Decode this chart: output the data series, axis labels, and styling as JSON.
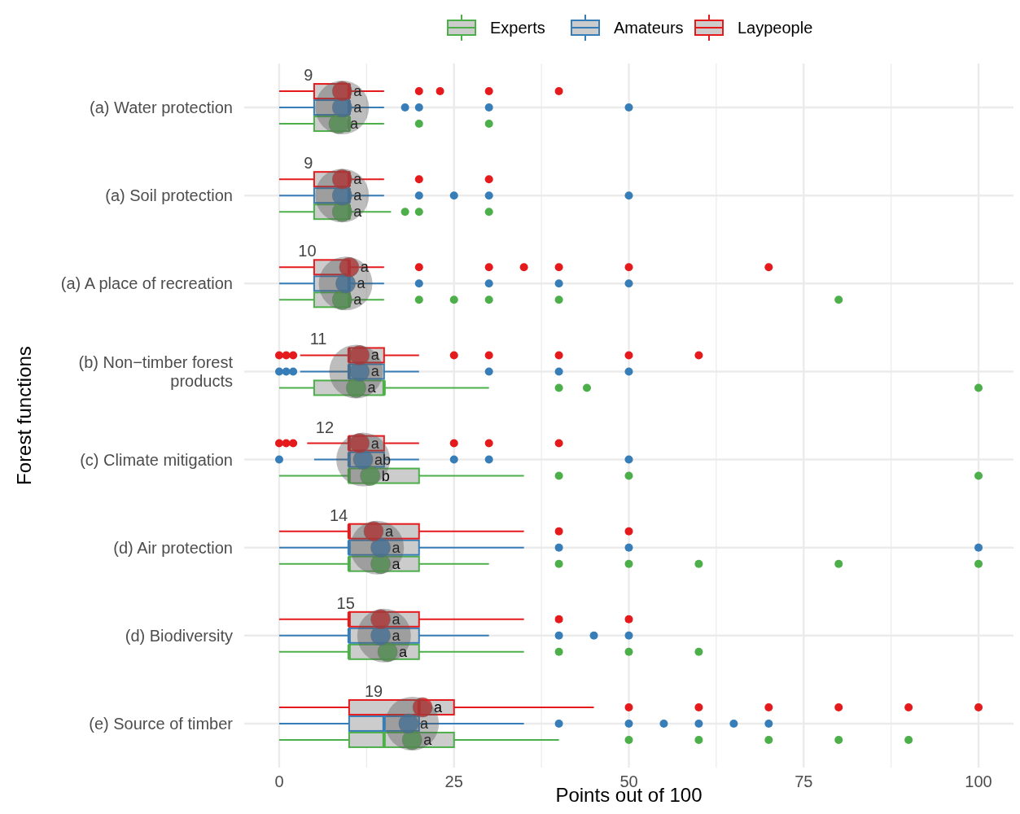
{
  "chart_data": {
    "type": "box",
    "orientation": "horizontal",
    "xlabel": "Points out of 100",
    "ylabel": "Forest functions",
    "categories": [
      "(a) Water protection",
      "(a) Soil protection",
      "(a) A place of recreation",
      "(b) Non−timber forest products",
      "(c) Climate mitigation",
      "(d) Air protection",
      "(d) Biodiversity",
      "(e) Source of timber"
    ],
    "xlim": [
      -5,
      105
    ],
    "xticks": [
      0,
      25,
      50,
      75,
      100
    ],
    "grid": true,
    "legend": "top",
    "series": [
      {
        "name": "Experts",
        "color": "#4daf4a",
        "boxes": [
          {
            "low": 0,
            "q1": 5,
            "median": 10,
            "q3": 10,
            "high": 15,
            "outliers": [
              20,
              30
            ]
          },
          {
            "low": 0,
            "q1": 5,
            "median": 10,
            "q3": 10,
            "high": 16,
            "outliers": [
              18,
              20,
              30
            ]
          },
          {
            "low": 0,
            "q1": 5,
            "median": 10,
            "q3": 10,
            "high": 15,
            "outliers": [
              20,
              25,
              30,
              40,
              80
            ]
          },
          {
            "low": 0,
            "q1": 5,
            "median": 15,
            "q3": 15,
            "high": 30,
            "outliers": [
              40,
              44,
              100
            ]
          },
          {
            "low": 0,
            "q1": 10,
            "median": 10,
            "q3": 20,
            "high": 35,
            "outliers": [
              40,
              50,
              100
            ]
          },
          {
            "low": 0,
            "q1": 10,
            "median": 10,
            "q3": 20,
            "high": 30,
            "outliers": [
              40,
              50,
              60,
              80,
              100
            ]
          },
          {
            "low": 0,
            "q1": 10,
            "median": 10,
            "q3": 20,
            "high": 35,
            "outliers": [
              40,
              50,
              60
            ]
          },
          {
            "low": 0,
            "q1": 10,
            "median": 15,
            "q3": 25,
            "high": 40,
            "outliers": [
              50,
              60,
              70,
              80,
              90
            ]
          }
        ]
      },
      {
        "name": "Amateurs",
        "color": "#377eb8",
        "boxes": [
          {
            "low": 0,
            "q1": 5,
            "median": 10,
            "q3": 10,
            "high": 15,
            "outliers": [
              18,
              20,
              30,
              50
            ]
          },
          {
            "low": 0,
            "q1": 5,
            "median": 10,
            "q3": 10,
            "high": 15,
            "outliers": [
              20,
              25,
              30,
              50
            ]
          },
          {
            "low": 0,
            "q1": 5,
            "median": 10,
            "q3": 10,
            "high": 15,
            "outliers": [
              20,
              30,
              40,
              50
            ]
          },
          {
            "low": 3,
            "q1": 10,
            "median": 10,
            "q3": 15,
            "high": 20,
            "outliers": [
              0,
              1,
              2,
              30,
              40,
              50
            ]
          },
          {
            "low": 5,
            "q1": 10,
            "median": 10,
            "q3": 15,
            "high": 20,
            "outliers": [
              0,
              25,
              30,
              50
            ]
          },
          {
            "low": 0,
            "q1": 10,
            "median": 10,
            "q3": 20,
            "high": 35,
            "outliers": [
              40,
              50,
              100
            ]
          },
          {
            "low": 0,
            "q1": 10,
            "median": 10,
            "q3": 20,
            "high": 30,
            "outliers": [
              40,
              45,
              50
            ]
          },
          {
            "low": 0,
            "q1": 10,
            "median": 15,
            "q3": 20,
            "high": 35,
            "outliers": [
              40,
              50,
              55,
              60,
              65,
              70
            ]
          }
        ]
      },
      {
        "name": "Laypeople",
        "color": "#e41a1c",
        "boxes": [
          {
            "low": 0,
            "q1": 5,
            "median": 10,
            "q3": 10,
            "high": 15,
            "outliers": [
              20,
              23,
              30,
              40
            ]
          },
          {
            "low": 0,
            "q1": 5,
            "median": 10,
            "q3": 10,
            "high": 15,
            "outliers": [
              20,
              30
            ]
          },
          {
            "low": 0,
            "q1": 5,
            "median": 10,
            "q3": 10,
            "high": 15,
            "outliers": [
              20,
              30,
              35,
              40,
              50,
              70
            ]
          },
          {
            "low": 3,
            "q1": 10,
            "median": 10,
            "q3": 15,
            "high": 20,
            "outliers": [
              0,
              1,
              2,
              25,
              30,
              40,
              50,
              60
            ]
          },
          {
            "low": 4,
            "q1": 10,
            "median": 10,
            "q3": 15,
            "high": 20,
            "outliers": [
              0,
              1,
              2,
              25,
              30,
              40
            ]
          },
          {
            "low": 0,
            "q1": 10,
            "median": 10,
            "q3": 20,
            "high": 35,
            "outliers": [
              40,
              50
            ]
          },
          {
            "low": 0,
            "q1": 10,
            "median": 10,
            "q3": 20,
            "high": 35,
            "outliers": [
              40,
              50
            ]
          },
          {
            "low": 0,
            "q1": 10,
            "median": 20,
            "q3": 25,
            "high": 45,
            "outliers": [
              50,
              60,
              70,
              80,
              90,
              100
            ]
          }
        ]
      },
      {
        "type": "scatter",
        "color": "#595959",
        "values": [
          9,
          9,
          9.5,
          11,
          12,
          14,
          15,
          19
        ],
        "value_labels": [
          "9",
          "9",
          "10",
          "11",
          "12",
          "14",
          "15",
          "19"
        ]
      },
      {
        "type": "scatter",
        "color": "#4daf4a",
        "values": [
          8.5,
          9,
          9,
          11,
          13,
          14.5,
          15.5,
          19
        ],
        "value_labels": [
          "a",
          "a",
          "a",
          "a",
          "b",
          "a",
          "a",
          "a"
        ]
      },
      {
        "type": "scatter",
        "color": "#377eb8",
        "values": [
          9,
          9,
          9.5,
          11.5,
          12,
          14.5,
          14.5,
          18.5
        ],
        "value_labels": [
          "a",
          "a",
          "a",
          "a",
          "ab",
          "a",
          "a",
          "a"
        ]
      },
      {
        "type": "scatter",
        "color": "#e41a1c",
        "values": [
          9,
          9,
          10,
          11.5,
          11.5,
          13.5,
          14.5,
          20.5
        ],
        "value_labels": [
          "a",
          "a",
          "a",
          "a",
          "a",
          "a",
          "a",
          "a"
        ]
      }
    ]
  }
}
